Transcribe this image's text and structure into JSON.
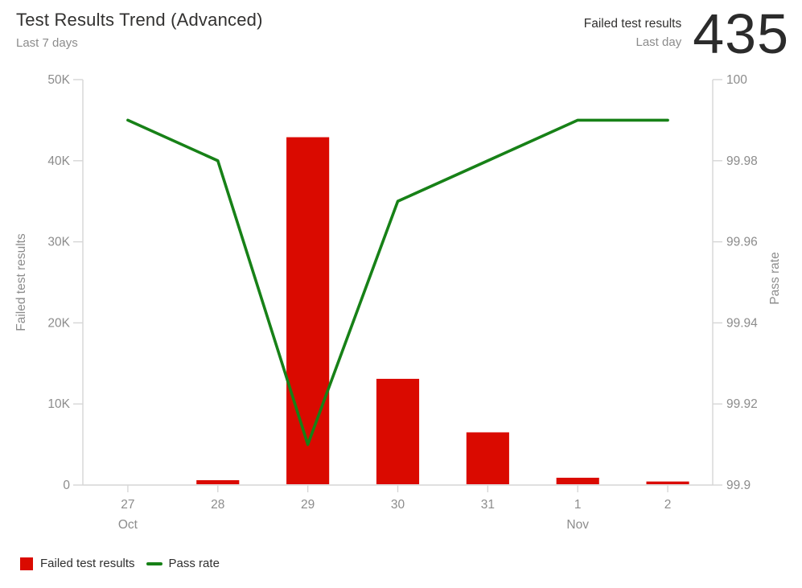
{
  "widget": {
    "title": "Test Results Trend (Advanced)",
    "subtitle": "Last 7 days",
    "kpi": {
      "label": "Failed test results",
      "sublabel": "Last day",
      "value": "435"
    }
  },
  "legend": {
    "position": "bottom-left",
    "items": [
      {
        "label": "Failed test results",
        "swatch": "square",
        "color": "#da0a00"
      },
      {
        "label": "Pass rate",
        "swatch": "line",
        "color": "#178117"
      }
    ]
  },
  "chart_data": {
    "type": "combo-bar-line",
    "title": "Test Results Trend (Advanced)",
    "categories": [
      "27",
      "28",
      "29",
      "30",
      "31",
      "1",
      "2"
    ],
    "month_markers": [
      {
        "category_index": 0,
        "label": "Oct"
      },
      {
        "category_index": 5,
        "label": "Nov"
      }
    ],
    "series": [
      {
        "name": "Failed test results",
        "type": "bar",
        "axis": "left",
        "color": "#da0a00",
        "values": [
          0,
          600,
          42900,
          13100,
          6500,
          900,
          435
        ]
      },
      {
        "name": "Pass rate",
        "type": "line",
        "axis": "right",
        "color": "#178117",
        "values": [
          99.99,
          99.98,
          99.91,
          99.97,
          99.98,
          99.99,
          99.99
        ]
      }
    ],
    "left_axis": {
      "title": "Failed test results",
      "min": 0,
      "max": 50000,
      "tick_values": [
        0,
        10000,
        20000,
        30000,
        40000,
        50000
      ],
      "tick_labels": [
        "0",
        "10K",
        "20K",
        "30K",
        "40K",
        "50K"
      ]
    },
    "right_axis": {
      "title": "Pass rate",
      "min": 99.9,
      "max": 100,
      "tick_values": [
        99.9,
        99.92,
        99.94,
        99.96,
        99.98,
        100
      ],
      "tick_labels": [
        "99.9",
        "99.92",
        "99.94",
        "99.96",
        "99.98",
        "100"
      ]
    },
    "grid": false
  },
  "colors": {
    "bar": "#da0a00",
    "line": "#178117",
    "text_dark": "#323130",
    "text_gray": "#8c8c8c",
    "axis_line": "#d6d6d6"
  }
}
